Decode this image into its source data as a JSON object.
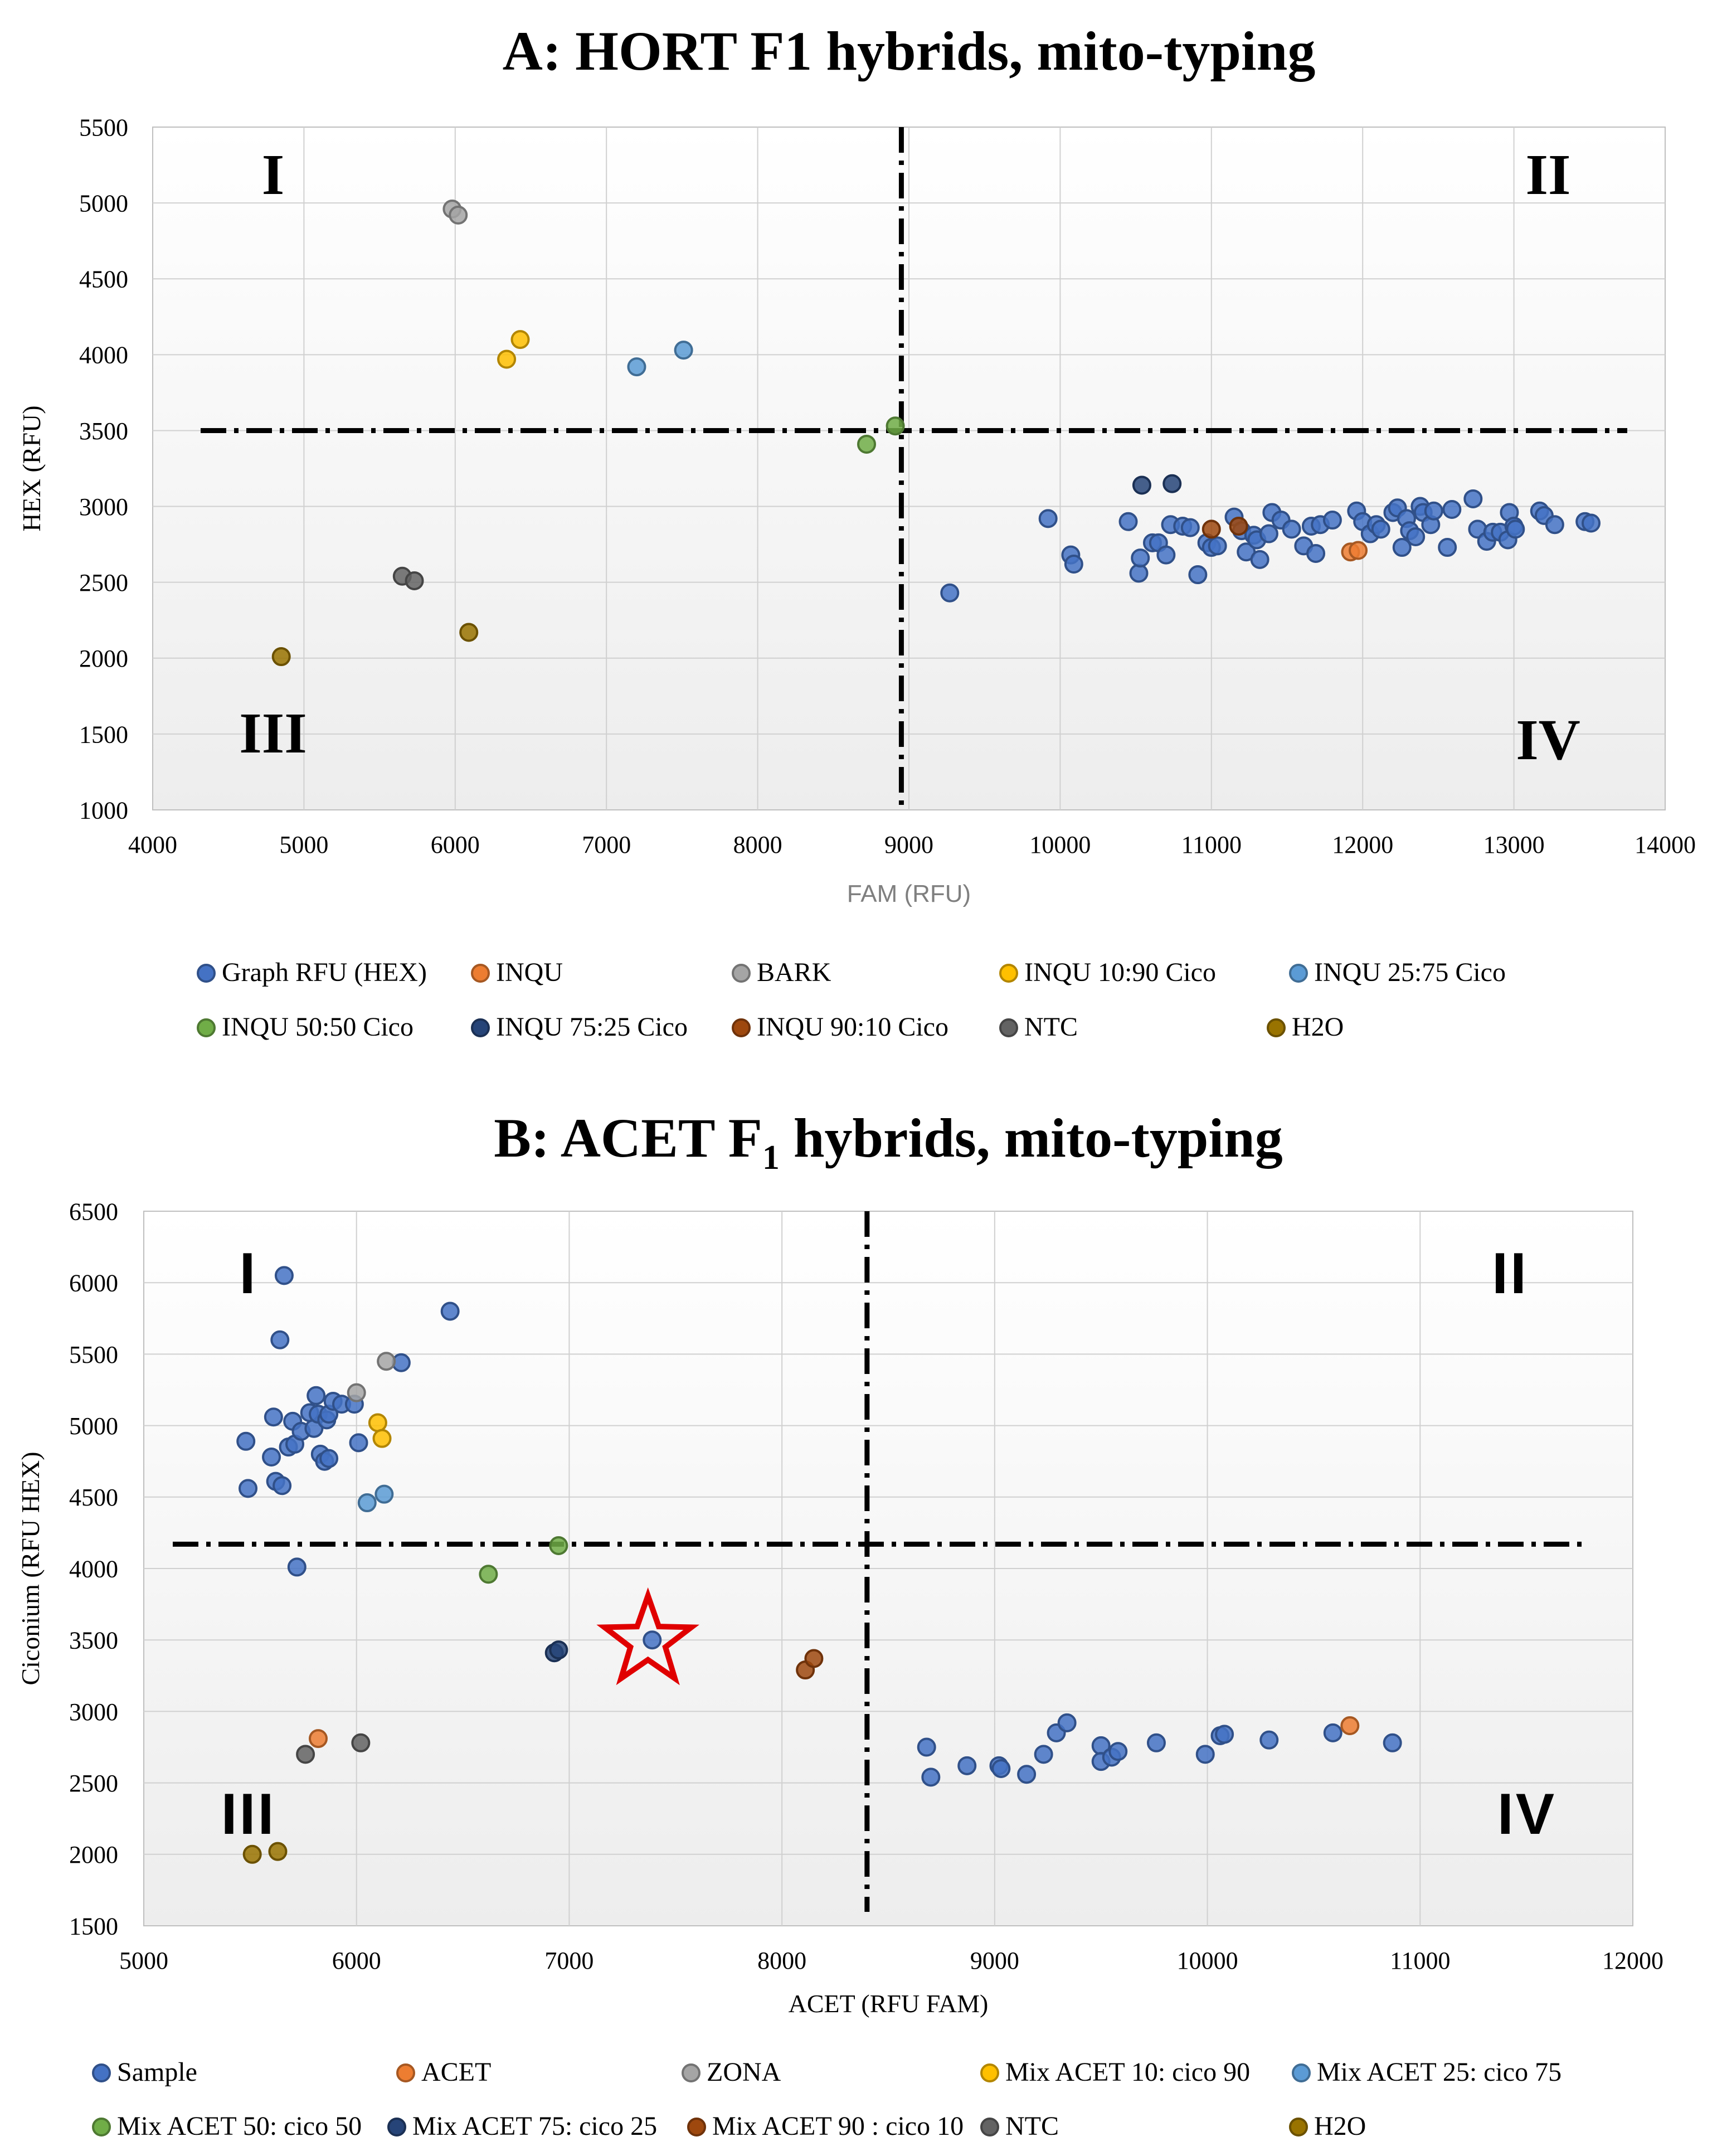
{
  "chart_data": [
    {
      "id": "A",
      "type": "scatter",
      "title": "A: HORT F1 hybrids, mito-typing",
      "xlabel": "FAM (RFU)",
      "ylabel": "HEX (RFU)",
      "xlim": [
        4000,
        14000
      ],
      "ylim": [
        1000,
        5500
      ],
      "xticks": [
        4000,
        5000,
        6000,
        7000,
        8000,
        9000,
        10000,
        11000,
        12000,
        13000,
        14000
      ],
      "yticks": [
        1000,
        1500,
        2000,
        2500,
        3000,
        3500,
        4000,
        4500,
        5000,
        5500
      ],
      "grid": true,
      "legend_position": "bottom",
      "threshold_x": 8950,
      "threshold_y": 3500,
      "quadrant_labels": {
        "top_left": "I",
        "top_right": "II",
        "bottom_left": "III",
        "bottom_right": "IV"
      },
      "series": [
        {
          "name": "Graph RFU (HEX)",
          "color": "#4472c4",
          "points": [
            [
              9270,
              2430
            ],
            [
              9920,
              2920
            ],
            [
              10070,
              2680
            ],
            [
              10090,
              2620
            ],
            [
              10450,
              2900
            ],
            [
              10520,
              2560
            ],
            [
              10530,
              2660
            ],
            [
              10610,
              2760
            ],
            [
              10650,
              2760
            ],
            [
              10700,
              2680
            ],
            [
              10730,
              2880
            ],
            [
              10810,
              2870
            ],
            [
              10860,
              2860
            ],
            [
              10910,
              2550
            ],
            [
              10970,
              2760
            ],
            [
              11000,
              2730
            ],
            [
              11040,
              2740
            ],
            [
              11150,
              2930
            ],
            [
              11200,
              2840
            ],
            [
              11230,
              2700
            ],
            [
              11280,
              2810
            ],
            [
              11300,
              2780
            ],
            [
              11320,
              2650
            ],
            [
              11380,
              2820
            ],
            [
              11400,
              2960
            ],
            [
              11460,
              2910
            ],
            [
              11530,
              2850
            ],
            [
              11610,
              2740
            ],
            [
              11660,
              2870
            ],
            [
              11690,
              2690
            ],
            [
              11720,
              2880
            ],
            [
              11800,
              2910
            ],
            [
              11960,
              2970
            ],
            [
              12000,
              2900
            ],
            [
              12050,
              2820
            ],
            [
              12090,
              2880
            ],
            [
              12120,
              2850
            ],
            [
              12200,
              2960
            ],
            [
              12230,
              2990
            ],
            [
              12260,
              2730
            ],
            [
              12290,
              2920
            ],
            [
              12310,
              2840
            ],
            [
              12350,
              2800
            ],
            [
              12380,
              3000
            ],
            [
              12400,
              2960
            ],
            [
              12450,
              2880
            ],
            [
              12470,
              2970
            ],
            [
              12560,
              2730
            ],
            [
              12590,
              2980
            ],
            [
              12730,
              3050
            ],
            [
              12760,
              2850
            ],
            [
              12820,
              2770
            ],
            [
              12860,
              2830
            ],
            [
              12910,
              2830
            ],
            [
              12960,
              2780
            ],
            [
              12970,
              2960
            ],
            [
              13000,
              2870
            ],
            [
              13010,
              2850
            ],
            [
              13170,
              2970
            ],
            [
              13200,
              2940
            ],
            [
              13270,
              2880
            ],
            [
              13470,
              2900
            ],
            [
              13510,
              2890
            ]
          ]
        },
        {
          "name": "INQU",
          "color": "#ed7d31",
          "points": [
            [
              11920,
              2700
            ],
            [
              11970,
              2710
            ]
          ]
        },
        {
          "name": "BARK",
          "color": "#a5a5a5",
          "points": [
            [
              5980,
              4960
            ],
            [
              6020,
              4920
            ]
          ]
        },
        {
          "name": "INQU 10:90 Cico",
          "color": "#ffc000",
          "points": [
            [
              6340,
              3970
            ],
            [
              6430,
              4100
            ]
          ]
        },
        {
          "name": "INQU 25:75 Cico",
          "color": "#5b9bd5",
          "points": [
            [
              7200,
              3920
            ],
            [
              7510,
              4030
            ]
          ]
        },
        {
          "name": "INQU 50:50 Cico",
          "color": "#70ad47",
          "points": [
            [
              8720,
              3410
            ],
            [
              8910,
              3530
            ]
          ]
        },
        {
          "name": "INQU 75:25 Cico",
          "color": "#264478",
          "points": [
            [
              10540,
              3140
            ],
            [
              10740,
              3150
            ]
          ]
        },
        {
          "name": "INQU 90:10 Cico",
          "color": "#9e480e",
          "points": [
            [
              11000,
              2850
            ],
            [
              11180,
              2870
            ]
          ]
        },
        {
          "name": "NTC",
          "color": "#636363",
          "points": [
            [
              5650,
              2540
            ],
            [
              5730,
              2510
            ]
          ]
        },
        {
          "name": "H2O",
          "color": "#997300",
          "points": [
            [
              4850,
              2010
            ],
            [
              6090,
              2170
            ]
          ]
        }
      ]
    },
    {
      "id": "B",
      "type": "scatter",
      "title": "B: ACET F",
      "title_sub": "1",
      "title_tail": " hybrids, mito-typing",
      "xlabel": "ACET (RFU FAM)",
      "ylabel": "Ciconium  (RFU HEX)",
      "xlim": [
        5000,
        12000
      ],
      "ylim": [
        1500,
        6500
      ],
      "xticks": [
        5000,
        6000,
        7000,
        8000,
        9000,
        10000,
        11000,
        12000
      ],
      "yticks": [
        1500,
        2000,
        2500,
        3000,
        3500,
        4000,
        4500,
        5000,
        5500,
        6000,
        6500
      ],
      "grid": true,
      "legend_position": "bottom",
      "threshold_x": 8400,
      "threshold_y": 4170,
      "quadrant_labels": {
        "top_left": "I",
        "top_right": "II",
        "bottom_left": "III",
        "bottom_right": "IV"
      },
      "star_marker": {
        "x": 7370,
        "y": 3490,
        "color": "#e00000"
      },
      "series": [
        {
          "name": "Sample",
          "color": "#4472c4",
          "points": [
            [
              5480,
              4890
            ],
            [
              5490,
              4560
            ],
            [
              5600,
              4780
            ],
            [
              5610,
              5060
            ],
            [
              5620,
              4610
            ],
            [
              5650,
              4580
            ],
            [
              5660,
              6050
            ],
            [
              5640,
              5600
            ],
            [
              5680,
              4850
            ],
            [
              5700,
              5030
            ],
            [
              5710,
              4870
            ],
            [
              5720,
              4010
            ],
            [
              5740,
              4960
            ],
            [
              5780,
              5090
            ],
            [
              5800,
              4980
            ],
            [
              5810,
              5210
            ],
            [
              5820,
              5080
            ],
            [
              5830,
              4800
            ],
            [
              5850,
              4750
            ],
            [
              5860,
              5040
            ],
            [
              5870,
              5080
            ],
            [
              5870,
              4770
            ],
            [
              5890,
              5170
            ],
            [
              5930,
              5150
            ],
            [
              5990,
              5150
            ],
            [
              6010,
              4880
            ],
            [
              6210,
              5440
            ],
            [
              6440,
              5800
            ],
            [
              7390,
              3500
            ],
            [
              8680,
              2750
            ],
            [
              8700,
              2540
            ],
            [
              8870,
              2620
            ],
            [
              9020,
              2620
            ],
            [
              9030,
              2600
            ],
            [
              9150,
              2560
            ],
            [
              9230,
              2700
            ],
            [
              9290,
              2850
            ],
            [
              9340,
              2920
            ],
            [
              9500,
              2760
            ],
            [
              9500,
              2650
            ],
            [
              9550,
              2680
            ],
            [
              9580,
              2720
            ],
            [
              9760,
              2780
            ],
            [
              9990,
              2700
            ],
            [
              10060,
              2830
            ],
            [
              10080,
              2840
            ],
            [
              10290,
              2800
            ],
            [
              10590,
              2850
            ],
            [
              10870,
              2780
            ]
          ]
        },
        {
          "name": "ACET",
          "color": "#ed7d31",
          "points": [
            [
              5820,
              2810
            ],
            [
              10670,
              2900
            ]
          ]
        },
        {
          "name": "ZONA",
          "color": "#a5a5a5",
          "points": [
            [
              6000,
              5230
            ],
            [
              6140,
              5450
            ]
          ]
        },
        {
          "name": "Mix ACET 10: cico 90",
          "color": "#ffc000",
          "points": [
            [
              6100,
              5020
            ],
            [
              6120,
              4910
            ]
          ]
        },
        {
          "name": "Mix ACET 25: cico 75",
          "color": "#5b9bd5",
          "points": [
            [
              6050,
              4460
            ],
            [
              6130,
              4520
            ]
          ]
        },
        {
          "name": "Mix ACET 50: cico 50",
          "color": "#70ad47",
          "points": [
            [
              6620,
              3960
            ],
            [
              6950,
              4160
            ]
          ]
        },
        {
          "name": "Mix ACET 75: cico 25",
          "color": "#264478",
          "points": [
            [
              6930,
              3410
            ],
            [
              6950,
              3430
            ]
          ]
        },
        {
          "name": "Mix ACET 90 : cico 10",
          "color": "#9e480e",
          "points": [
            [
              8110,
              3290
            ],
            [
              8150,
              3370
            ]
          ]
        },
        {
          "name": "NTC",
          "color": "#636363",
          "points": [
            [
              5760,
              2700
            ],
            [
              6020,
              2780
            ]
          ]
        },
        {
          "name": "H2O",
          "color": "#997300",
          "points": [
            [
              5510,
              2000
            ],
            [
              5630,
              2020
            ]
          ]
        }
      ]
    }
  ]
}
